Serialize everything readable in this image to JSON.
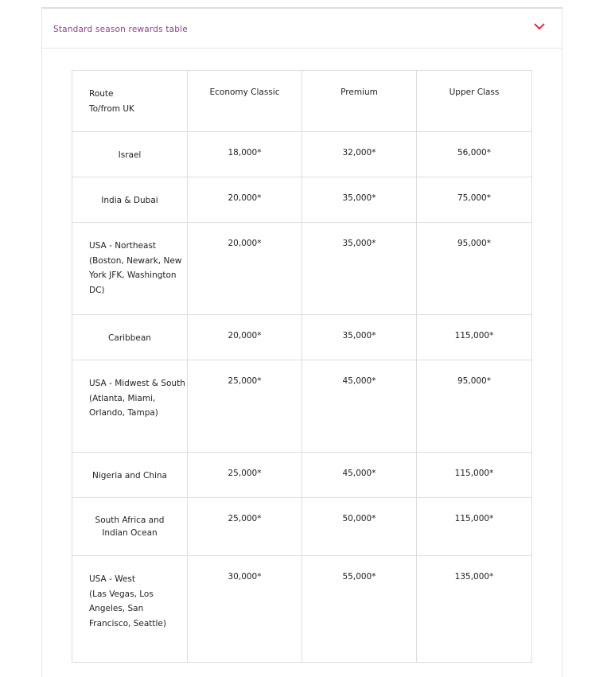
{
  "accordion": {
    "title": "Standard season rewards table",
    "expanded": true,
    "accent_color": "#e1163c",
    "title_color": "#8a3f8f",
    "icon": "chevron-down-icon"
  },
  "table": {
    "headers": {
      "route": "Route",
      "route_sub": "To/from UK",
      "economy": "Economy Classic",
      "premium": "Premium",
      "upper": "Upper Class"
    },
    "rows": [
      {
        "route": "Israel",
        "details": "",
        "economy": "18,000*",
        "premium": "32,000*",
        "upper": "56,000*"
      },
      {
        "route": "India & Dubai",
        "details": "",
        "economy": "20,000*",
        "premium": "35,000*",
        "upper": "75,000*"
      },
      {
        "route": "USA - Northeast",
        "details": "(Boston, Newark, New York JFK, Washington DC)",
        "economy": "20,000*",
        "premium": "35,000*",
        "upper": "95,000*"
      },
      {
        "route": "Caribbean",
        "details": "",
        "economy": "20,000*",
        "premium": "35,000*",
        "upper": "115,000*"
      },
      {
        "route": "USA - Midwest & South",
        "details": "(Atlanta, Miami, Orlando, Tampa)",
        "economy": "25,000*",
        "premium": "45,000*",
        "upper": "95,000*"
      },
      {
        "route": "Nigeria and China",
        "details": "",
        "economy": "25,000*",
        "premium": "45,000*",
        "upper": "115,000*"
      },
      {
        "route": "South Africa and Indian Ocean",
        "details": "",
        "economy": "25,000*",
        "premium": "50,000*",
        "upper": "115,000*"
      },
      {
        "route": "USA - West",
        "details": "(Las Vegas, Los Angeles, San Francisco, Seattle)",
        "economy": "30,000*",
        "premium": "55,000*",
        "upper": "135,000*"
      }
    ]
  }
}
